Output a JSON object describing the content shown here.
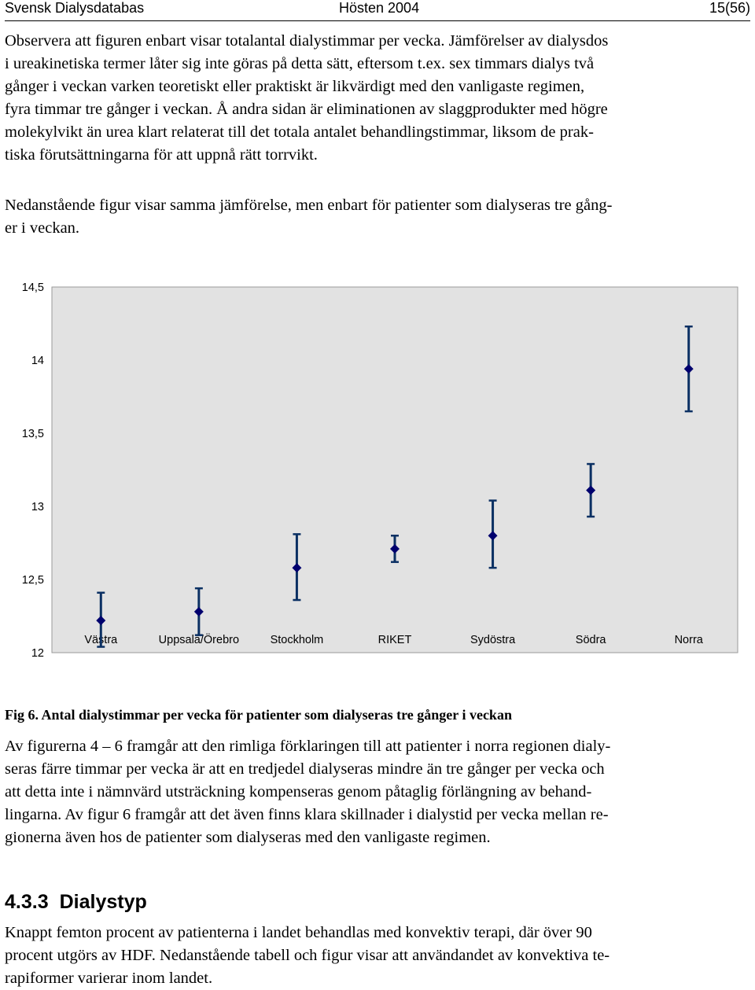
{
  "header": {
    "left": "Svensk Dialysdatabas",
    "center": "Hösten 2004",
    "right": "15(56)"
  },
  "paragraph1": {
    "lines": [
      "Observera att figuren enbart visar totalantal dialystimmar per vecka. Jämförelser av dialysdos",
      "i ureakinetiska termer låter sig inte göras på detta sätt, eftersom t.ex. sex timmars dialys två",
      "gånger i veckan varken teoretiskt eller praktiskt är likvärdigt med den vanligaste regimen,",
      "fyra timmar tre gånger i veckan. Å andra sidan är eliminationen av slaggprodukter med högre",
      "molekylvikt än urea klart relaterat till det totala antalet behandlingstimmar, liksom de prak-",
      "tiska förutsättningarna för att uppnå rätt torrvikt."
    ]
  },
  "paragraph2": {
    "lines": [
      "Nedanstående figur visar samma jämförelse, men enbart för patienter som dialyseras tre gång-",
      "er i veckan."
    ]
  },
  "chart_data": {
    "type": "scatter",
    "error_bars": true,
    "title": "",
    "xlabel": "",
    "ylabel": "",
    "categories": [
      "Västra",
      "Uppsala/Örebro",
      "Stockholm",
      "RIKET",
      "Sydöstra",
      "Södra",
      "Norra"
    ],
    "yticks": [
      "14,5",
      "14",
      "13,5",
      "13",
      "12,5",
      "12"
    ],
    "ylim": [
      12,
      14.5
    ],
    "grid": false,
    "legend": "none",
    "plot_background": "#e2e2e2",
    "marker_color": "#00006e",
    "errorbar_color": "#0b3063",
    "series": [
      {
        "values": [
          12.22,
          12.28,
          12.58,
          12.71,
          12.8,
          13.11,
          13.94
        ],
        "lower": [
          12.04,
          12.12,
          12.36,
          12.62,
          12.58,
          12.93,
          13.65
        ],
        "upper": [
          12.41,
          12.44,
          12.81,
          12.8,
          13.04,
          13.29,
          14.23
        ]
      }
    ]
  },
  "caption": "Fig 6. Antal dialystimmar per vecka för patienter som dialyseras tre gånger i veckan",
  "paragraph3": {
    "lines": [
      "Av figurerna 4 – 6 framgår att den rimliga förklaringen till att patienter i norra regionen dialy-",
      "seras färre timmar per vecka är att en tredjedel dialyseras mindre än tre gånger per vecka och",
      "att detta inte i nämnvärd utsträckning kompenseras genom påtaglig förlängning av behand-",
      "lingarna. Av figur 6 framgår att det även finns klara skillnader i dialystid per vecka mellan re-",
      "gionerna även hos de patienter som dialyseras med den vanligaste regimen."
    ]
  },
  "section": {
    "number": "4.3.3",
    "title": "Dialystyp"
  },
  "paragraph4": {
    "lines": [
      "Knappt femton procent av patienterna i landet behandlas med konvektiv terapi, där över 90",
      "procent utgörs av HDF. Nedanstående tabell och figur visar att användandet av konvektiva te-",
      "rapiformer varierar inom landet."
    ]
  }
}
